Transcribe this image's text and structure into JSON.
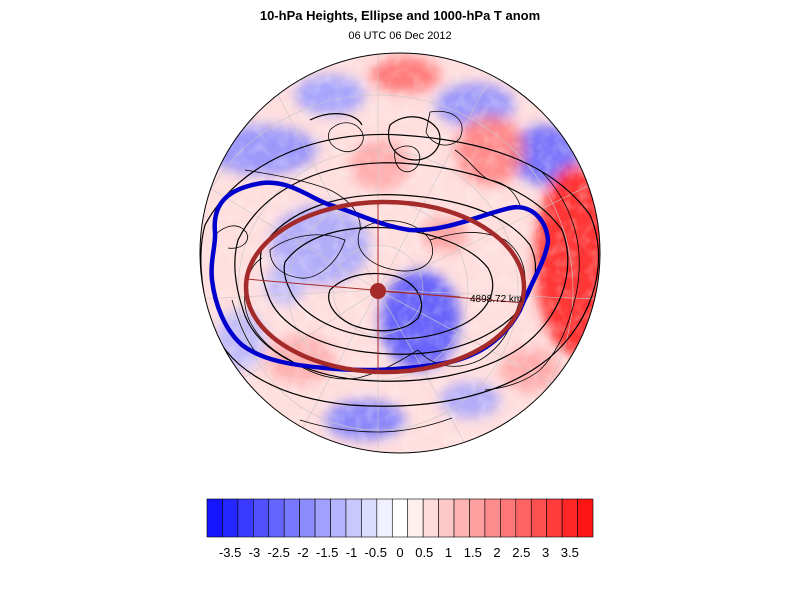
{
  "figure": {
    "title": "10-hPa Heights, Ellipse and 1000-hPa T anom",
    "subtitle": "06 UTC 06 Dec 2012"
  },
  "map": {
    "projection": "polar-stereographic-north",
    "ellipse_label": "4898.72 km",
    "colors": {
      "ellipse": "#a52a2a",
      "vortex_edge": "#0000cc",
      "contours": "#000000",
      "coastlines": "#000000",
      "graticule": "#c8c8c8"
    }
  },
  "colorbar": {
    "colors": [
      "#1414ff",
      "#2626ff",
      "#3b3bff",
      "#5050ff",
      "#6464ff",
      "#7878ff",
      "#8c8cff",
      "#a0a0ff",
      "#b4b4ff",
      "#c8c8ff",
      "#dcdcff",
      "#f0f0ff",
      "#ffffff",
      "#fff0f0",
      "#ffdcdc",
      "#ffc8c8",
      "#ffb4b4",
      "#ffa0a0",
      "#ff8c8c",
      "#ff7878",
      "#ff6464",
      "#ff5050",
      "#ff3b3b",
      "#ff2626",
      "#ff1414"
    ],
    "labels": [
      "-3.5",
      "-3",
      "-2.5",
      "-2",
      "-1.5",
      "-1",
      "-0.5",
      "0",
      "0.5",
      "1",
      "1.5",
      "2",
      "2.5",
      "3",
      "3.5"
    ]
  }
}
